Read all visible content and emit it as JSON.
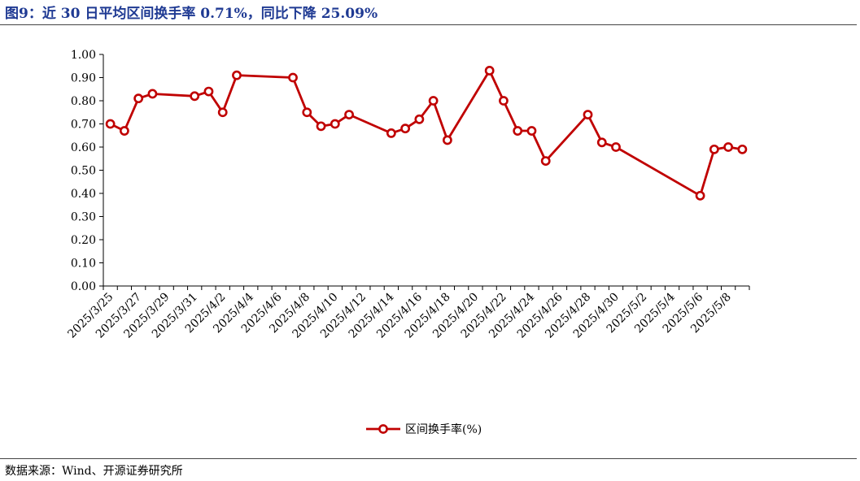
{
  "header": {
    "title": "图9：近 30 日平均区间换手率 0.71%，同比下降 25.09%"
  },
  "footer": {
    "source": "数据来源：Wind、开源证券研究所"
  },
  "chart_data": {
    "type": "line",
    "title": "",
    "xlabel": "",
    "ylabel": "",
    "ylim": [
      0,
      1.0
    ],
    "yticks": [
      "0.00",
      "0.10",
      "0.20",
      "0.30",
      "0.40",
      "0.50",
      "0.60",
      "0.70",
      "0.80",
      "0.90",
      "1.00"
    ],
    "x_start": "2025/3/25",
    "x_end": "2025/5/9",
    "xticks": [
      "2025/3/25",
      "2025/3/27",
      "2025/3/29",
      "2025/3/31",
      "2025/4/2",
      "2025/4/4",
      "2025/4/6",
      "2025/4/8",
      "2025/4/10",
      "2025/4/12",
      "2025/4/14",
      "2025/4/16",
      "2025/4/18",
      "2025/4/20",
      "2025/4/22",
      "2025/4/24",
      "2025/4/26",
      "2025/4/28",
      "2025/4/30",
      "2025/5/2",
      "2025/5/4",
      "2025/5/6",
      "2025/5/8"
    ],
    "legend": "bottom-center",
    "grid": false,
    "series": [
      {
        "name": "区间换手率(%)",
        "color": "#c00000",
        "x": [
          "2025/3/25",
          "2025/3/26",
          "2025/3/27",
          "2025/3/28",
          "2025/3/31",
          "2025/4/1",
          "2025/4/2",
          "2025/4/3",
          "2025/4/7",
          "2025/4/8",
          "2025/4/9",
          "2025/4/10",
          "2025/4/11",
          "2025/4/14",
          "2025/4/15",
          "2025/4/16",
          "2025/4/17",
          "2025/4/18",
          "2025/4/21",
          "2025/4/22",
          "2025/4/23",
          "2025/4/24",
          "2025/4/25",
          "2025/4/28",
          "2025/4/29",
          "2025/4/30",
          "2025/5/6",
          "2025/5/7",
          "2025/5/8",
          "2025/5/9"
        ],
        "values": [
          0.7,
          0.67,
          0.81,
          0.83,
          0.82,
          0.84,
          0.75,
          0.91,
          0.9,
          0.75,
          0.69,
          0.7,
          0.74,
          0.66,
          0.68,
          0.72,
          0.8,
          0.63,
          0.93,
          0.8,
          0.67,
          0.67,
          0.54,
          0.74,
          0.62,
          0.6,
          0.39,
          0.59,
          0.6,
          0.59
        ]
      }
    ]
  }
}
